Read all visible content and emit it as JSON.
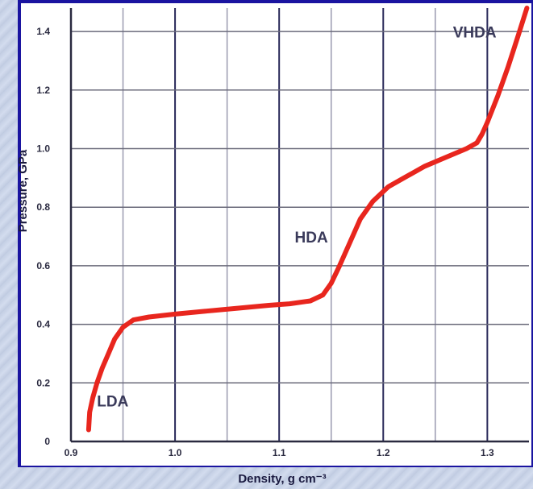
{
  "chart_data": {
    "type": "line",
    "xlabel": "Density, g cm⁻³",
    "ylabel": "Pressure, GPa",
    "xlim": [
      0.9,
      1.34
    ],
    "ylim": [
      0,
      1.48
    ],
    "x_ticks": [
      "0.9",
      "1.0",
      "1.1",
      "1.2",
      "1.3"
    ],
    "y_ticks": [
      "0",
      "0.2",
      "0.4",
      "0.6",
      "0.8",
      "1.0",
      "1.2",
      "1.4"
    ],
    "grid": true,
    "series": [
      {
        "x": [
          0.917,
          0.918,
          0.921,
          0.925,
          0.93,
          0.936,
          0.942,
          0.95,
          0.96,
          0.975,
          1.0,
          1.03,
          1.06,
          1.09,
          1.11,
          1.13,
          1.142,
          1.15,
          1.158,
          1.168,
          1.178,
          1.19,
          1.205,
          1.22,
          1.24,
          1.26,
          1.28,
          1.29,
          1.295,
          1.3,
          1.31,
          1.32,
          1.33,
          1.338
        ],
        "y": [
          0.04,
          0.1,
          0.15,
          0.2,
          0.25,
          0.3,
          0.35,
          0.39,
          0.415,
          0.425,
          0.435,
          0.445,
          0.455,
          0.465,
          0.47,
          0.48,
          0.5,
          0.54,
          0.6,
          0.68,
          0.76,
          0.82,
          0.87,
          0.9,
          0.94,
          0.97,
          1.0,
          1.02,
          1.05,
          1.09,
          1.18,
          1.28,
          1.39,
          1.48
        ]
      }
    ],
    "annotations": [
      {
        "text": "LDA",
        "x": 0.925,
        "y": 0.12
      },
      {
        "text": "HDA",
        "x": 1.115,
        "y": 0.68
      },
      {
        "text": "VHDA",
        "x": 1.267,
        "y": 1.38
      }
    ],
    "line_color": "#e8261e"
  }
}
